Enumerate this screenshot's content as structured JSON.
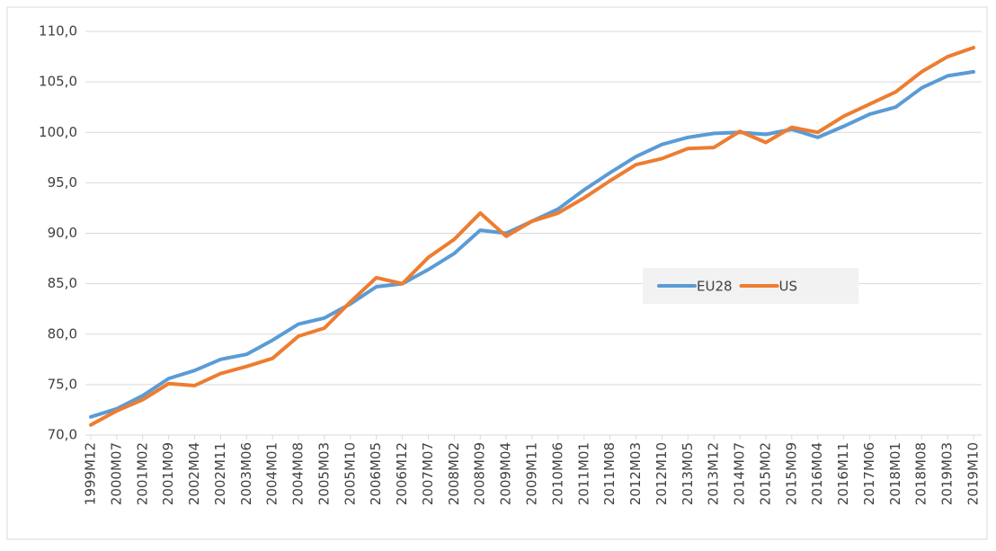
{
  "chart_data": {
    "type": "line",
    "categories": [
      "1999M12",
      "2000M07",
      "2001M02",
      "2001M09",
      "2002M04",
      "2002M11",
      "2003M06",
      "2004M01",
      "2004M08",
      "2005M03",
      "2005M10",
      "2006M05",
      "2006M12",
      "2007M07",
      "2008M02",
      "2008M09",
      "2009M04",
      "2009M11",
      "2010M06",
      "2011M01",
      "2011M08",
      "2012M03",
      "2012M10",
      "2013M05",
      "2013M12",
      "2014M07",
      "2015M02",
      "2015M09",
      "2016M04",
      "2016M11",
      "2017M06",
      "2018M01",
      "2018M08",
      "2019M03",
      "2019M10"
    ],
    "series": [
      {
        "name": "EU28",
        "color": "#5b9bd5",
        "values": [
          71.8,
          72.6,
          73.9,
          75.6,
          76.4,
          77.5,
          78.0,
          79.4,
          81.0,
          81.6,
          83.0,
          84.7,
          85.0,
          86.4,
          88.0,
          90.3,
          90.0,
          91.2,
          92.4,
          94.3,
          96.0,
          97.6,
          98.8,
          99.5,
          99.9,
          100.0,
          99.8,
          100.3,
          99.5,
          100.6,
          101.8,
          102.5,
          104.4,
          105.6,
          106.0
        ]
      },
      {
        "name": "US",
        "color": "#ed7d31",
        "values": [
          71.0,
          72.4,
          73.5,
          75.1,
          74.9,
          76.1,
          76.8,
          77.6,
          79.8,
          80.6,
          83.2,
          85.6,
          85.0,
          87.6,
          89.4,
          92.0,
          89.7,
          91.2,
          92.0,
          93.5,
          95.2,
          96.8,
          97.4,
          98.4,
          98.5,
          100.1,
          99.0,
          100.5,
          100.0,
          101.6,
          102.8,
          104.0,
          106.0,
          107.5,
          108.4
        ]
      }
    ],
    "ylim": [
      70,
      110
    ],
    "yticks": [
      {
        "value": 70,
        "label": "70,0"
      },
      {
        "value": 75,
        "label": "75,0"
      },
      {
        "value": 80,
        "label": "80,0"
      },
      {
        "value": 85,
        "label": "85,0"
      },
      {
        "value": 90,
        "label": "90,0"
      },
      {
        "value": 95,
        "label": "95,0"
      },
      {
        "value": 100,
        "label": "100,0"
      },
      {
        "value": 105,
        "label": "105,0"
      },
      {
        "value": 110,
        "label": "110,0"
      }
    ],
    "grid": true,
    "legend": "right"
  }
}
